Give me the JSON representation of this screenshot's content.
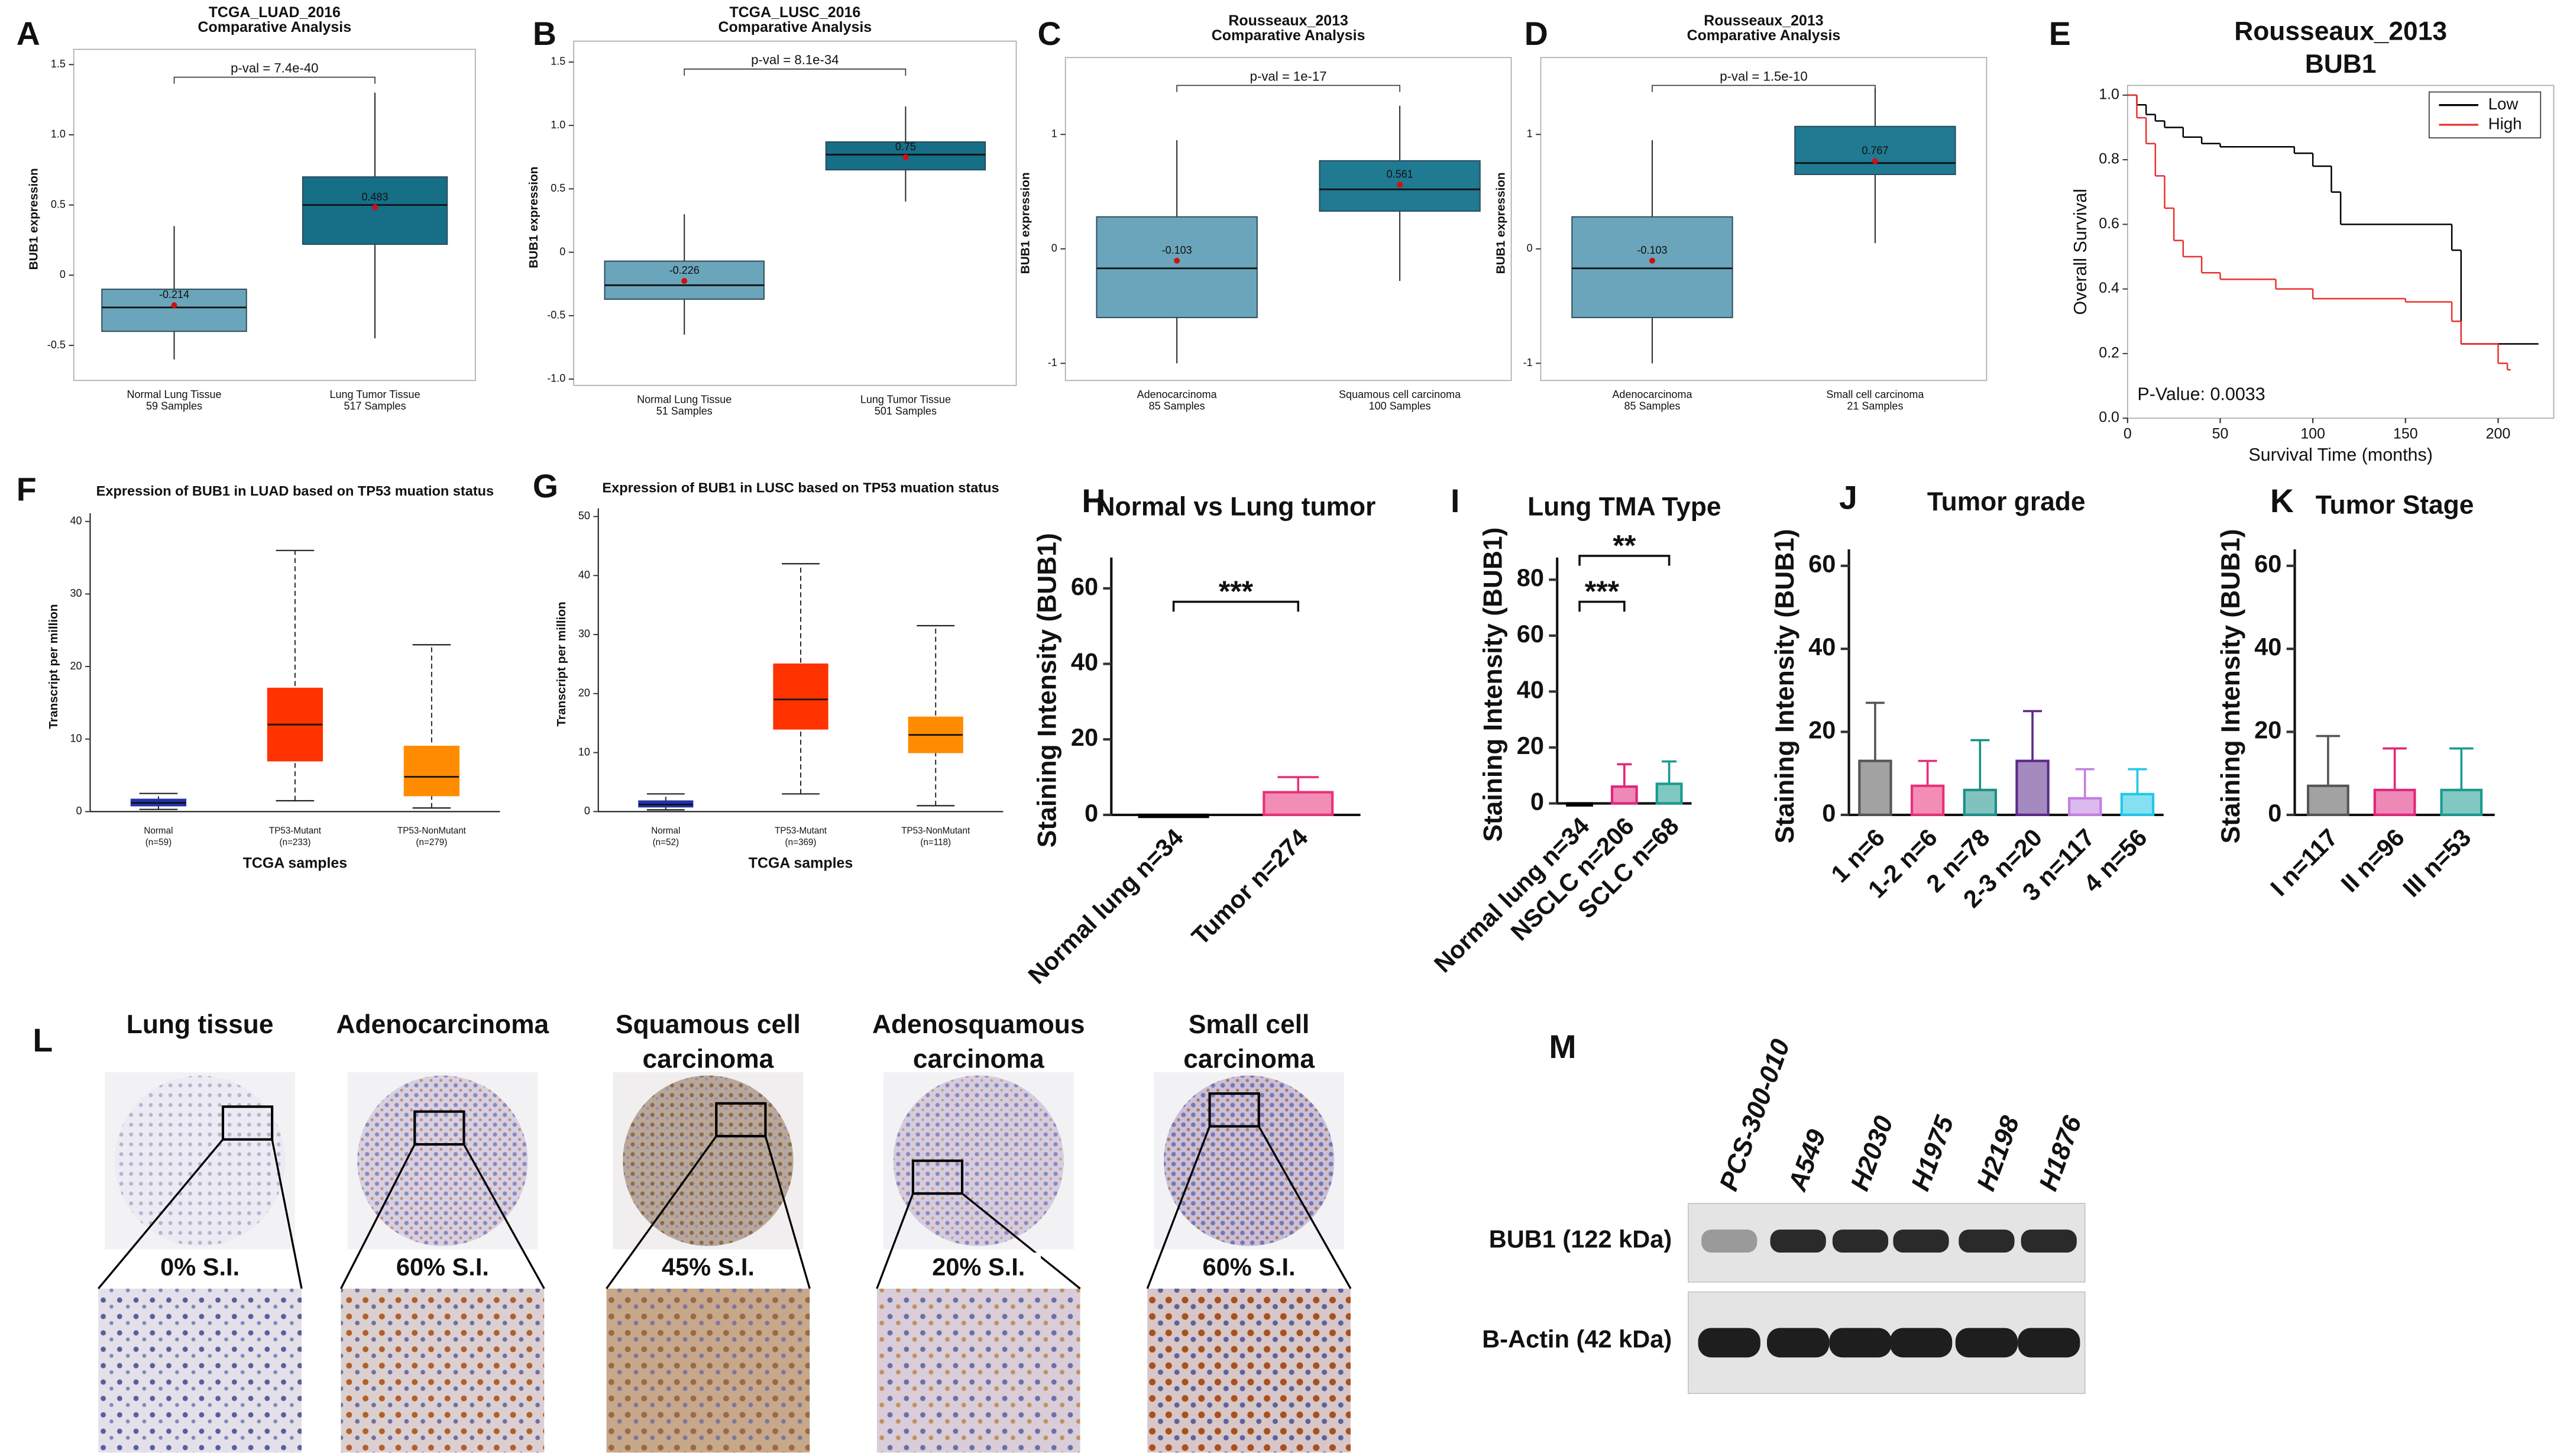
{
  "chart_data": [
    {
      "letter": "A",
      "type": "box",
      "title": "TCGA_LUAD_2016",
      "subtitle": "Comparative Analysis",
      "ylabel": "BUB1 expression",
      "annotation": "p-val = 7.4e-40",
      "categories": [
        "Normal Lung Tissue",
        "Lung Tumor Tissue"
      ],
      "samples": [
        "59 Samples",
        "517 Samples"
      ],
      "colors": [
        "#6aa5bb",
        "#166e87"
      ],
      "ylim": [
        -0.75,
        1.55
      ],
      "yticks": [
        -0.5,
        0,
        0.5,
        {
          "value": 1,
          "label": "1.0"
        },
        1.5
      ],
      "boxes": [
        {
          "whisker_low": -0.6,
          "q1": -0.4,
          "median": -0.23,
          "q3": -0.1,
          "whisker_high": 0.35,
          "mean": -0.214
        },
        {
          "whisker_low": -0.45,
          "q1": 0.22,
          "median": 0.5,
          "q3": 0.7,
          "whisker_high": 1.3,
          "mean": 0.483
        }
      ]
    },
    {
      "letter": "B",
      "type": "box",
      "title": "TCGA_LUSC_2016",
      "subtitle": "Comparative Analysis",
      "ylabel": "BUB1 expression",
      "annotation": "p-val = 8.1e-34",
      "categories": [
        "Normal Lung Tissue",
        "Lung Tumor Tissue"
      ],
      "samples": [
        "51 Samples",
        "501 Samples"
      ],
      "colors": [
        "#6aa5bb",
        "#166e87"
      ],
      "ylim": [
        -1.05,
        1.6
      ],
      "yticks": [
        {
          "value": -1,
          "label": "-1.0"
        },
        -0.5,
        0,
        0.5,
        {
          "value": 1,
          "label": "1.0"
        },
        1.5
      ],
      "boxes": [
        {
          "whisker_low": -0.65,
          "q1": -0.37,
          "median": -0.26,
          "q3": -0.07,
          "whisker_high": 0.3,
          "mean": -0.226
        },
        {
          "whisker_low": 0.4,
          "q1": 0.65,
          "median": 0.77,
          "q3": 0.87,
          "whisker_high": 1.15,
          "mean": 0.75
        }
      ]
    },
    {
      "letter": "C",
      "type": "box",
      "title": "Rousseaux_2013",
      "subtitle": "Comparative Analysis",
      "ylabel": "BUB1 expression",
      "annotation": "p-val = 1e-17",
      "categories": [
        "Adenocarcinoma",
        "Squamous cell carcinoma"
      ],
      "samples": [
        "85 Samples",
        "100 Samples"
      ],
      "colors": [
        "#6aa5bb",
        "#1f7a92"
      ],
      "ylim": [
        -1.15,
        1.6
      ],
      "yticks": [
        -1,
        0,
        1
      ],
      "boxes": [
        {
          "whisker_low": -1.0,
          "q1": -0.6,
          "median": -0.17,
          "q3": 0.28,
          "whisker_high": 0.95,
          "mean": -0.103
        },
        {
          "whisker_low": -0.28,
          "q1": 0.33,
          "median": 0.52,
          "q3": 0.77,
          "whisker_high": 1.25,
          "mean": 0.561
        }
      ]
    },
    {
      "letter": "D",
      "type": "box",
      "title": "Rousseaux_2013",
      "subtitle": "Comparative Analysis",
      "ylabel": "BUB1 expression",
      "annotation": "p-val = 1.5e-10",
      "categories": [
        "Adenocarcinoma",
        "Small cell carcinoma"
      ],
      "samples": [
        "85 Samples",
        "21 Samples"
      ],
      "colors": [
        "#6aa5bb",
        "#1f7a92"
      ],
      "ylim": [
        -1.15,
        1.6
      ],
      "yticks": [
        -1,
        0,
        1
      ],
      "boxes": [
        {
          "whisker_low": -1.0,
          "q1": -0.6,
          "median": -0.17,
          "q3": 0.28,
          "whisker_high": 0.95,
          "mean": -0.103
        },
        {
          "whisker_low": 0.05,
          "q1": 0.65,
          "median": 0.75,
          "q3": 1.07,
          "whisker_high": 1.4,
          "mean": 0.767
        }
      ]
    },
    {
      "letter": "E",
      "type": "survival",
      "title": "Rousseaux_2013",
      "subtitle": "BUB1",
      "xlabel": "Survival Time (months)",
      "ylabel": "Overall Survival",
      "annotation": "P-Value: 0.0033",
      "legend": "top-right",
      "xlim": [
        0,
        230
      ],
      "xticks": [
        0,
        50,
        100,
        150,
        200
      ],
      "ylim": [
        0,
        1.03
      ],
      "yticks": [
        {
          "value": 0,
          "label": "0.0"
        },
        0.2,
        0.4,
        0.6,
        0.8,
        {
          "value": 1,
          "label": "1.0"
        }
      ],
      "series": [
        {
          "name": "Low",
          "color": "#000000",
          "x": [
            0,
            5,
            10,
            15,
            20,
            30,
            40,
            50,
            60,
            80,
            90,
            100,
            110,
            115,
            170,
            175,
            180,
            220
          ],
          "values": [
            1,
            0.97,
            0.94,
            0.92,
            0.9,
            0.87,
            0.85,
            0.84,
            0.84,
            0.84,
            0.82,
            0.78,
            0.7,
            0.6,
            0.6,
            0.52,
            0.23,
            0.23
          ]
        },
        {
          "name": "High",
          "color": "#e8322f",
          "x": [
            0,
            5,
            10,
            15,
            20,
            25,
            30,
            40,
            50,
            70,
            80,
            100,
            150,
            175,
            180,
            200,
            205
          ],
          "values": [
            1,
            0.93,
            0.85,
            0.75,
            0.65,
            0.55,
            0.5,
            0.45,
            0.43,
            0.43,
            0.4,
            0.37,
            0.36,
            0.3,
            0.23,
            0.17,
            0.15
          ]
        }
      ]
    },
    {
      "letter": "F",
      "type": "box",
      "title": "Expression of BUB1 in LUAD based on TP53 muation status",
      "ylabel": "Transcript per million",
      "xlabel": "TCGA samples",
      "categories": [
        "Normal",
        "TP53-Mutant",
        "TP53-NonMutant"
      ],
      "samples": [
        "(n=59)",
        "(n=233)",
        "(n=279)"
      ],
      "colors": [
        "#2233aa",
        "#ff3300",
        "#ff8c00"
      ],
      "ylim": [
        0,
        40
      ],
      "yticks": [
        0,
        10,
        20,
        30,
        40
      ],
      "boxes": [
        {
          "whisker_low": 0.3,
          "q1": 0.8,
          "median": 1.2,
          "q3": 1.7,
          "whisker_high": 2.5
        },
        {
          "whisker_low": 1.5,
          "q1": 7,
          "median": 12,
          "q3": 17,
          "whisker_high": 36
        },
        {
          "whisker_low": 0.5,
          "q1": 2.2,
          "median": 4.8,
          "q3": 9,
          "whisker_high": 23
        }
      ]
    },
    {
      "letter": "G",
      "type": "box",
      "title": "Expression of BUB1 in LUSC based on TP53 muation status",
      "ylabel": "Transcript per million",
      "xlabel": "TCGA samples",
      "categories": [
        "Normal",
        "TP53-Mutant",
        "TP53-NonMutant"
      ],
      "samples": [
        "(n=52)",
        "(n=369)",
        "(n=118)"
      ],
      "colors": [
        "#2233aa",
        "#ff3300",
        "#ff8c00"
      ],
      "ylim": [
        0,
        50
      ],
      "yticks": [
        0,
        10,
        20,
        30,
        40,
        50
      ],
      "boxes": [
        {
          "whisker_low": 0.3,
          "q1": 0.8,
          "median": 1.2,
          "q3": 1.8,
          "whisker_high": 3
        },
        {
          "whisker_low": 3,
          "q1": 14,
          "median": 19,
          "q3": 25,
          "whisker_high": 42
        },
        {
          "whisker_low": 1,
          "q1": 10,
          "median": 13,
          "q3": 16,
          "whisker_high": 31.5
        }
      ]
    },
    {
      "letter": "H",
      "type": "bar",
      "title": "Normal vs Lung tumor",
      "ylabel": "Staining Intensity (BUB1)",
      "annotations": [
        "***"
      ],
      "categories": [
        "Normal lung n=34",
        "Tumor n=274"
      ],
      "values": [
        0,
        6
      ],
      "errors": [
        0,
        4
      ],
      "colors": [
        "#000000",
        "#e8307a"
      ],
      "ylim": [
        0,
        66
      ],
      "yticks": [
        0,
        20,
        40,
        60
      ]
    },
    {
      "letter": "I",
      "type": "bar",
      "title": "Lung TMA Type",
      "ylabel": "Staining Intensity (BUB1)",
      "annotations": [
        "***",
        "**"
      ],
      "categories": [
        "Normal lung n=34",
        "NSCLC n=206",
        "SCLC n=68"
      ],
      "values": [
        0,
        6,
        7
      ],
      "errors": [
        0,
        8,
        8
      ],
      "colors": [
        "#000000",
        "#e0267a",
        "#1a9a8f"
      ],
      "ylim": [
        0,
        85
      ],
      "yticks": [
        0,
        20,
        40,
        60,
        80
      ]
    },
    {
      "letter": "J",
      "type": "bar",
      "title": "Tumor grade",
      "ylabel": "Staining Intensity (BUB1)",
      "categories": [
        "1 n=6",
        "1-2 n=6",
        "2 n=78",
        "2-3 n=20",
        "3 n=117",
        "4 n=56"
      ],
      "values": [
        13,
        7,
        6,
        13,
        4,
        5
      ],
      "errors": [
        14,
        6,
        12,
        12,
        7,
        6
      ],
      "colors": [
        "#555555",
        "#e8307a",
        "#1b8f88",
        "#5b2a8a",
        "#c080e0",
        "#20c8e8"
      ],
      "ylim": [
        0,
        62
      ],
      "yticks": [
        0,
        20,
        40,
        60
      ]
    },
    {
      "letter": "K",
      "type": "bar",
      "title": "Tumor Stage",
      "ylabel": "Staining Intensity (BUB1)",
      "categories": [
        "I n=117",
        "II n=96",
        "III n=53"
      ],
      "values": [
        7,
        6,
        6
      ],
      "errors": [
        12,
        10,
        10
      ],
      "colors": [
        "#555555",
        "#e0267a",
        "#1a9a8f"
      ],
      "ylim": [
        0,
        62
      ],
      "yticks": [
        0,
        20,
        40,
        60
      ]
    }
  ],
  "ihc": {
    "letter": "L",
    "titles": [
      [
        "Lung tissue"
      ],
      [
        "Adenocarcinoma"
      ],
      [
        "Squamous cell",
        "carcinoma"
      ],
      [
        "Adenosquamous",
        "carcinoma"
      ],
      [
        "Small cell",
        "carcinoma"
      ]
    ],
    "scores": [
      "0% S.I.",
      "60% S.I.",
      "45% S.I.",
      "20% S.I.",
      "60% S.I."
    ]
  },
  "western_blot": {
    "letter": "M",
    "lanes": [
      "PCS-300-010",
      "A549",
      "H2030",
      "H1975",
      "H2198",
      "H1876"
    ],
    "rows": [
      "BUB1 (122 kDa)",
      "B-Actin (42 kDa)"
    ]
  }
}
